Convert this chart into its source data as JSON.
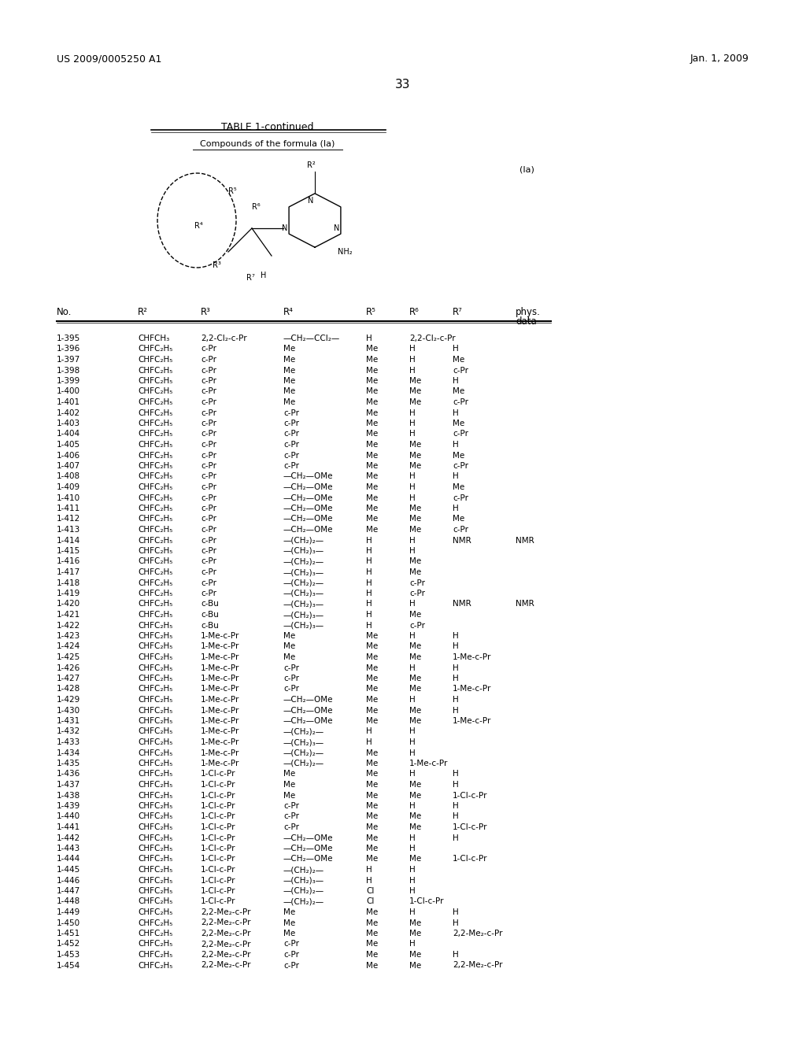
{
  "header_left": "US 2009/0005250 A1",
  "header_right": "Jan. 1, 2009",
  "page_number": "33",
  "table_title": "TABLE 1-continued",
  "table_subtitle": "Compounds of the formula (Ia)",
  "formula_label": "(Ia)",
  "col_headers": [
    "No.",
    "R²",
    "R³",
    "R⁴",
    "R⁵",
    "R⁶",
    "R⁷",
    "phys.\ndata"
  ],
  "rows": [
    [
      "1-395",
      "CHFCH₃",
      "2,2-Cl₂-c-Pr",
      "—CH₂—CCl₂—",
      "H",
      "2,2-Cl₂-c-Pr",
      ""
    ],
    [
      "1-396",
      "CHFC₂H₅",
      "c-Pr",
      "Me",
      "Me",
      "H",
      "H"
    ],
    [
      "1-397",
      "CHFC₂H₅",
      "c-Pr",
      "Me",
      "Me",
      "H",
      "Me"
    ],
    [
      "1-398",
      "CHFC₂H₅",
      "c-Pr",
      "Me",
      "Me",
      "H",
      "c-Pr"
    ],
    [
      "1-399",
      "CHFC₂H₅",
      "c-Pr",
      "Me",
      "Me",
      "Me",
      "H"
    ],
    [
      "1-400",
      "CHFC₂H₅",
      "c-Pr",
      "Me",
      "Me",
      "Me",
      "Me"
    ],
    [
      "1-401",
      "CHFC₂H₅",
      "c-Pr",
      "Me",
      "Me",
      "Me",
      "c-Pr"
    ],
    [
      "1-402",
      "CHFC₂H₅",
      "c-Pr",
      "c-Pr",
      "Me",
      "H",
      "H"
    ],
    [
      "1-403",
      "CHFC₂H₅",
      "c-Pr",
      "c-Pr",
      "Me",
      "H",
      "Me"
    ],
    [
      "1-404",
      "CHFC₂H₅",
      "c-Pr",
      "c-Pr",
      "Me",
      "H",
      "c-Pr"
    ],
    [
      "1-405",
      "CHFC₂H₅",
      "c-Pr",
      "c-Pr",
      "Me",
      "Me",
      "H"
    ],
    [
      "1-406",
      "CHFC₂H₅",
      "c-Pr",
      "c-Pr",
      "Me",
      "Me",
      "Me"
    ],
    [
      "1-407",
      "CHFC₂H₅",
      "c-Pr",
      "c-Pr",
      "Me",
      "Me",
      "c-Pr"
    ],
    [
      "1-408",
      "CHFC₂H₅",
      "c-Pr",
      "—CH₂—OMe",
      "Me",
      "H",
      "H"
    ],
    [
      "1-409",
      "CHFC₂H₅",
      "c-Pr",
      "—CH₂—OMe",
      "Me",
      "H",
      "Me"
    ],
    [
      "1-410",
      "CHFC₂H₅",
      "c-Pr",
      "—CH₂—OMe",
      "Me",
      "H",
      "c-Pr"
    ],
    [
      "1-411",
      "CHFC₂H₅",
      "c-Pr",
      "—CH₂—OMe",
      "Me",
      "Me",
      "H"
    ],
    [
      "1-412",
      "CHFC₂H₅",
      "c-Pr",
      "—CH₂—OMe",
      "Me",
      "Me",
      "Me"
    ],
    [
      "1-413",
      "CHFC₂H₅",
      "c-Pr",
      "—CH₂—OMe",
      "Me",
      "Me",
      "c-Pr"
    ],
    [
      "1-414",
      "CHFC₂H₅",
      "c-Pr",
      "—(CH₂)₂—",
      "H",
      "H",
      "NMR"
    ],
    [
      "1-415",
      "CHFC₂H₅",
      "c-Pr",
      "—(CH₂)₃—",
      "H",
      "H",
      ""
    ],
    [
      "1-416",
      "CHFC₂H₅",
      "c-Pr",
      "—(CH₂)₂—",
      "H",
      "Me",
      ""
    ],
    [
      "1-417",
      "CHFC₂H₅",
      "c-Pr",
      "—(CH₂)₃—",
      "H",
      "Me",
      ""
    ],
    [
      "1-418",
      "CHFC₂H₅",
      "c-Pr",
      "—(CH₂)₂—",
      "H",
      "c-Pr",
      ""
    ],
    [
      "1-419",
      "CHFC₂H₅",
      "c-Pr",
      "—(CH₂)₃—",
      "H",
      "c-Pr",
      ""
    ],
    [
      "1-420",
      "CHFC₂H₅",
      "c-Bu",
      "—(CH₂)₃—",
      "H",
      "H",
      "NMR"
    ],
    [
      "1-421",
      "CHFC₂H₅",
      "c-Bu",
      "—(CH₂)₃—",
      "H",
      "Me",
      ""
    ],
    [
      "1-422",
      "CHFC₂H₅",
      "c-Bu",
      "—(CH₂)₃—",
      "H",
      "c-Pr",
      ""
    ],
    [
      "1-423",
      "CHFC₂H₅",
      "1-Me-c-Pr",
      "Me",
      "Me",
      "H",
      "H"
    ],
    [
      "1-424",
      "CHFC₂H₅",
      "1-Me-c-Pr",
      "Me",
      "Me",
      "Me",
      "H"
    ],
    [
      "1-425",
      "CHFC₂H₅",
      "1-Me-c-Pr",
      "Me",
      "Me",
      "Me",
      "1-Me-c-Pr"
    ],
    [
      "1-426",
      "CHFC₂H₅",
      "1-Me-c-Pr",
      "c-Pr",
      "Me",
      "H",
      "H"
    ],
    [
      "1-427",
      "CHFC₂H₅",
      "1-Me-c-Pr",
      "c-Pr",
      "Me",
      "Me",
      "H"
    ],
    [
      "1-428",
      "CHFC₂H₅",
      "1-Me-c-Pr",
      "c-Pr",
      "Me",
      "Me",
      "1-Me-c-Pr"
    ],
    [
      "1-429",
      "CHFC₂H₅",
      "1-Me-c-Pr",
      "—CH₂—OMe",
      "Me",
      "H",
      "H"
    ],
    [
      "1-430",
      "CHFC₂H₅",
      "1-Me-c-Pr",
      "—CH₂—OMe",
      "Me",
      "Me",
      "H"
    ],
    [
      "1-431",
      "CHFC₂H₅",
      "1-Me-c-Pr",
      "—CH₂—OMe",
      "Me",
      "Me",
      "1-Me-c-Pr"
    ],
    [
      "1-432",
      "CHFC₂H₅",
      "1-Me-c-Pr",
      "—(CH₂)₂—",
      "H",
      "H",
      ""
    ],
    [
      "1-433",
      "CHFC₂H₅",
      "1-Me-c-Pr",
      "—(CH₂)₃—",
      "H",
      "H",
      ""
    ],
    [
      "1-434",
      "CHFC₂H₅",
      "1-Me-c-Pr",
      "—(CH₂)₂—",
      "Me",
      "H",
      ""
    ],
    [
      "1-435",
      "CHFC₂H₅",
      "1-Me-c-Pr",
      "—(CH₂)₂—",
      "Me",
      "1-Me-c-Pr",
      ""
    ],
    [
      "1-436",
      "CHFC₂H₅",
      "1-Cl-c-Pr",
      "Me",
      "Me",
      "H",
      "H"
    ],
    [
      "1-437",
      "CHFC₂H₅",
      "1-Cl-c-Pr",
      "Me",
      "Me",
      "Me",
      "H"
    ],
    [
      "1-438",
      "CHFC₂H₅",
      "1-Cl-c-Pr",
      "Me",
      "Me",
      "Me",
      "1-Cl-c-Pr"
    ],
    [
      "1-439",
      "CHFC₂H₅",
      "1-Cl-c-Pr",
      "c-Pr",
      "Me",
      "H",
      "H"
    ],
    [
      "1-440",
      "CHFC₂H₅",
      "1-Cl-c-Pr",
      "c-Pr",
      "Me",
      "Me",
      "H"
    ],
    [
      "1-441",
      "CHFC₂H₅",
      "1-Cl-c-Pr",
      "c-Pr",
      "Me",
      "Me",
      "1-Cl-c-Pr"
    ],
    [
      "1-442",
      "CHFC₂H₅",
      "1-Cl-c-Pr",
      "—CH₂—OMe",
      "Me",
      "H",
      "H"
    ],
    [
      "1-443",
      "CHFC₂H₅",
      "1-Cl-c-Pr",
      "—CH₂—OMe",
      "Me",
      "H",
      ""
    ],
    [
      "1-444",
      "CHFC₂H₅",
      "1-Cl-c-Pr",
      "—CH₂—OMe",
      "Me",
      "Me",
      "1-Cl-c-Pr"
    ],
    [
      "1-445",
      "CHFC₂H₅",
      "1-Cl-c-Pr",
      "—(CH₂)₂—",
      "H",
      "H",
      ""
    ],
    [
      "1-446",
      "CHFC₂H₅",
      "1-Cl-c-Pr",
      "—(CH₂)₃—",
      "H",
      "H",
      ""
    ],
    [
      "1-447",
      "CHFC₂H₅",
      "1-Cl-c-Pr",
      "—(CH₂)₂—",
      "Cl",
      "H",
      ""
    ],
    [
      "1-448",
      "CHFC₂H₅",
      "1-Cl-c-Pr",
      "—(CH₂)₂—",
      "Cl",
      "1-Cl-c-Pr",
      ""
    ],
    [
      "1-449",
      "CHFC₂H₅",
      "2,2-Me₂-c-Pr",
      "Me",
      "Me",
      "H",
      "H"
    ],
    [
      "1-450",
      "CHFC₂H₅",
      "2,2-Me₂-c-Pr",
      "Me",
      "Me",
      "Me",
      "H"
    ],
    [
      "1-451",
      "CHFC₂H₅",
      "2,2-Me₂-c-Pr",
      "Me",
      "Me",
      "Me",
      "2,2-Me₂-c-Pr"
    ],
    [
      "1-452",
      "CHFC₂H₅",
      "2,2-Me₂-c-Pr",
      "c-Pr",
      "Me",
      "H",
      ""
    ],
    [
      "1-453",
      "CHFC₂H₅",
      "2,2-Me₂-c-Pr",
      "c-Pr",
      "Me",
      "Me",
      "H"
    ],
    [
      "1-454",
      "CHFC₂H₅",
      "2,2-Me₂-c-Pr",
      "c-Pr",
      "Me",
      "Me",
      "2,2-Me₂-c-Pr"
    ]
  ],
  "background_color": "#ffffff",
  "text_color": "#000000",
  "font_size": 7.5,
  "header_font_size": 9
}
